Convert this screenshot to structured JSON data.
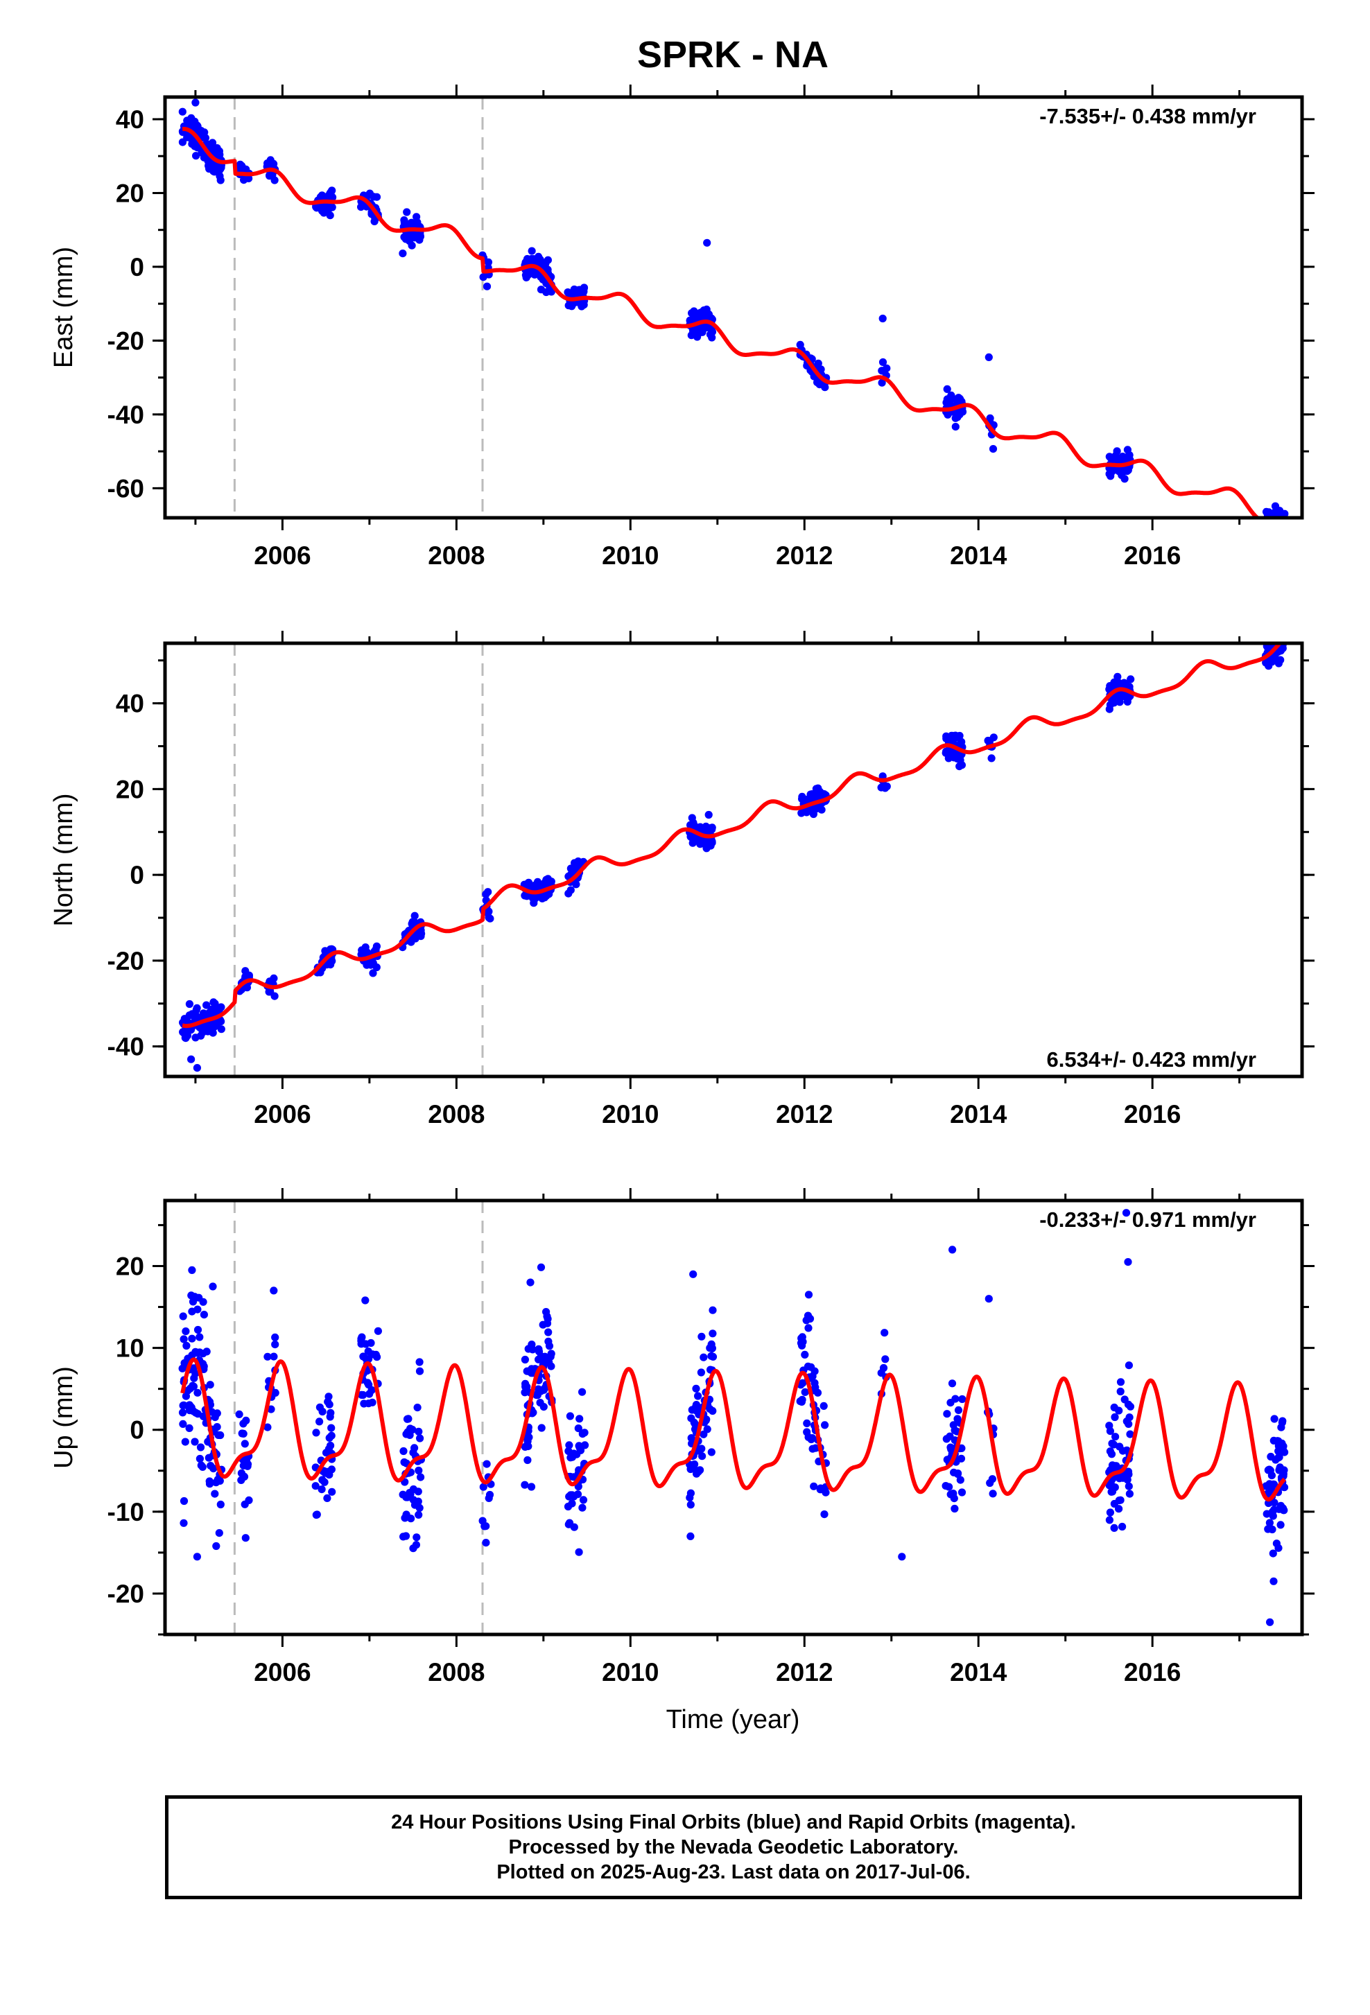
{
  "figure": {
    "title": "SPRK - NA",
    "xlabel": "Time (year)",
    "footer": [
      "24 Hour Positions Using Final Orbits (blue) and Rapid Orbits (magenta).",
      "Processed by the Nevada Geodetic Laboratory.",
      "Plotted on 2025-Aug-23. Last data on 2017-Jul-06."
    ],
    "colors": {
      "data": "#0000ff",
      "model": "#ff0000",
      "event_lines": "#bbbbbb",
      "axes": "#000000"
    }
  },
  "chart_data": [
    {
      "type": "scatter",
      "name": "east",
      "ylabel": "East (mm)",
      "rate_label": "-7.535+/- 0.438 mm/yr",
      "xlim": [
        2004.65,
        2017.72
      ],
      "ylim": [
        -68,
        46
      ],
      "xticks": [
        2006,
        2008,
        2010,
        2012,
        2014,
        2016
      ],
      "yticks": [
        40,
        20,
        0,
        -20,
        -40,
        -60
      ],
      "event_lines_x": [
        2005.45,
        2008.3
      ],
      "model": {
        "trend": -7.535,
        "offset": 34.5,
        "t0": 2004.85,
        "annual_amplitude": 2.6,
        "annual_phase_year": 2004.85,
        "semiannual_amplitude": 0.8,
        "semiannual_phase_year": 2004.95,
        "steps": [
          {
            "year": 2005.45,
            "value": -3.5
          },
          {
            "year": 2008.3,
            "value": -3.5
          }
        ]
      },
      "observation_clusters": [
        {
          "start": 2004.85,
          "end": 2005.3,
          "n": 110,
          "spread": 2.2
        },
        {
          "start": 2005.5,
          "end": 2005.62,
          "n": 18,
          "spread": 1.3
        },
        {
          "start": 2005.82,
          "end": 2005.92,
          "n": 12,
          "spread": 1.2
        },
        {
          "start": 2006.38,
          "end": 2006.58,
          "n": 35,
          "spread": 1.6
        },
        {
          "start": 2006.9,
          "end": 2007.1,
          "n": 32,
          "spread": 1.6
        },
        {
          "start": 2007.38,
          "end": 2007.6,
          "n": 48,
          "spread": 1.8
        },
        {
          "start": 2008.3,
          "end": 2008.4,
          "n": 10,
          "spread": 1.6
        },
        {
          "start": 2008.78,
          "end": 2009.1,
          "n": 75,
          "spread": 1.8
        },
        {
          "start": 2009.28,
          "end": 2009.48,
          "n": 40,
          "spread": 1.8
        },
        {
          "start": 2010.68,
          "end": 2010.95,
          "n": 70,
          "spread": 1.5
        },
        {
          "start": 2011.95,
          "end": 2012.25,
          "n": 55,
          "spread": 1.6
        },
        {
          "start": 2012.88,
          "end": 2012.95,
          "n": 6,
          "spread": 2.0
        },
        {
          "start": 2013.62,
          "end": 2013.82,
          "n": 45,
          "spread": 1.8
        },
        {
          "start": 2014.1,
          "end": 2014.18,
          "n": 8,
          "spread": 1.8
        },
        {
          "start": 2015.5,
          "end": 2015.75,
          "n": 60,
          "spread": 1.6
        },
        {
          "start": 2017.3,
          "end": 2017.52,
          "n": 70,
          "spread": 1.6
        }
      ],
      "outliers": [
        {
          "x": 2005.0,
          "y": 44.5
        },
        {
          "x": 2010.88,
          "y": 6.5
        },
        {
          "x": 2014.12,
          "y": -24.5
        },
        {
          "x": 2012.9,
          "y": -14
        }
      ]
    },
    {
      "type": "scatter",
      "name": "north",
      "ylabel": "North (mm)",
      "rate_label": "6.534+/- 0.423 mm/yr",
      "xlim": [
        2004.65,
        2017.72
      ],
      "ylim": [
        -47,
        54
      ],
      "xticks": [
        2006,
        2008,
        2010,
        2012,
        2014,
        2016
      ],
      "yticks": [
        40,
        20,
        0,
        -20,
        -40
      ],
      "event_lines_x": [
        2005.45,
        2008.3
      ],
      "model": {
        "trend": 6.534,
        "offset": -34.5,
        "t0": 2004.85,
        "annual_amplitude": 1.8,
        "annual_phase_year": 2005.6,
        "semiannual_amplitude": 0.6,
        "semiannual_phase_year": 2005.1,
        "steps": [
          {
            "year": 2005.45,
            "value": 2.5
          },
          {
            "year": 2008.3,
            "value": 2.5
          }
        ]
      },
      "observation_clusters": [
        {
          "start": 2004.85,
          "end": 2005.3,
          "n": 110,
          "spread": 1.6
        },
        {
          "start": 2005.5,
          "end": 2005.62,
          "n": 18,
          "spread": 1.0
        },
        {
          "start": 2005.82,
          "end": 2005.92,
          "n": 12,
          "spread": 1.2
        },
        {
          "start": 2006.38,
          "end": 2006.58,
          "n": 35,
          "spread": 1.3
        },
        {
          "start": 2006.9,
          "end": 2007.1,
          "n": 32,
          "spread": 1.4
        },
        {
          "start": 2007.38,
          "end": 2007.6,
          "n": 48,
          "spread": 1.3
        },
        {
          "start": 2008.3,
          "end": 2008.4,
          "n": 10,
          "spread": 1.4
        },
        {
          "start": 2008.78,
          "end": 2009.1,
          "n": 75,
          "spread": 1.3
        },
        {
          "start": 2009.28,
          "end": 2009.48,
          "n": 40,
          "spread": 1.5
        },
        {
          "start": 2010.68,
          "end": 2010.95,
          "n": 70,
          "spread": 1.4
        },
        {
          "start": 2011.95,
          "end": 2012.25,
          "n": 55,
          "spread": 1.4
        },
        {
          "start": 2012.88,
          "end": 2012.95,
          "n": 6,
          "spread": 1.5
        },
        {
          "start": 2013.62,
          "end": 2013.82,
          "n": 45,
          "spread": 1.5
        },
        {
          "start": 2014.1,
          "end": 2014.18,
          "n": 8,
          "spread": 1.5
        },
        {
          "start": 2015.5,
          "end": 2015.75,
          "n": 60,
          "spread": 1.4
        },
        {
          "start": 2017.3,
          "end": 2017.52,
          "n": 70,
          "spread": 1.7
        }
      ],
      "outliers": [
        {
          "x": 2004.95,
          "y": -43
        },
        {
          "x": 2005.02,
          "y": -45
        },
        {
          "x": 2010.9,
          "y": 14
        },
        {
          "x": 2012.9,
          "y": 23
        }
      ]
    },
    {
      "type": "scatter",
      "name": "up",
      "ylabel": "Up (mm)",
      "rate_label": "-0.233+/- 0.971 mm/yr",
      "xlim": [
        2004.65,
        2017.72
      ],
      "ylim": [
        -25,
        28
      ],
      "xticks": [
        2006,
        2008,
        2010,
        2012,
        2014,
        2016
      ],
      "yticks": [
        20,
        10,
        0,
        -10,
        -20
      ],
      "event_lines_x": [
        2005.45,
        2008.3
      ],
      "model": {
        "trend": -0.233,
        "offset": 0.2,
        "t0": 2004.85,
        "annual_amplitude": 6.2,
        "annual_phase_year": 2004.95,
        "semiannual_amplitude": 2.4,
        "semiannual_phase_year": 2005.0,
        "steps": []
      },
      "observation_clusters": [
        {
          "start": 2004.85,
          "end": 2005.3,
          "n": 110,
          "spread": 5.0
        },
        {
          "start": 2005.5,
          "end": 2005.62,
          "n": 18,
          "spread": 3.5
        },
        {
          "start": 2005.82,
          "end": 2005.92,
          "n": 12,
          "spread": 2.5
        },
        {
          "start": 2006.38,
          "end": 2006.58,
          "n": 35,
          "spread": 4.0
        },
        {
          "start": 2006.9,
          "end": 2007.1,
          "n": 32,
          "spread": 4.0
        },
        {
          "start": 2007.38,
          "end": 2007.6,
          "n": 48,
          "spread": 4.5
        },
        {
          "start": 2008.3,
          "end": 2008.4,
          "n": 10,
          "spread": 4.0
        },
        {
          "start": 2008.78,
          "end": 2009.1,
          "n": 75,
          "spread": 4.5
        },
        {
          "start": 2009.28,
          "end": 2009.48,
          "n": 40,
          "spread": 4.5
        },
        {
          "start": 2010.68,
          "end": 2010.95,
          "n": 70,
          "spread": 4.0
        },
        {
          "start": 2011.95,
          "end": 2012.25,
          "n": 55,
          "spread": 4.5
        },
        {
          "start": 2012.88,
          "end": 2012.95,
          "n": 6,
          "spread": 4.0
        },
        {
          "start": 2013.62,
          "end": 2013.82,
          "n": 45,
          "spread": 4.5
        },
        {
          "start": 2014.1,
          "end": 2014.18,
          "n": 8,
          "spread": 4.0
        },
        {
          "start": 2015.5,
          "end": 2015.75,
          "n": 60,
          "spread": 4.5
        },
        {
          "start": 2017.3,
          "end": 2017.52,
          "n": 70,
          "spread": 3.5
        }
      ],
      "outliers": [
        {
          "x": 2004.96,
          "y": 19.5
        },
        {
          "x": 2005.02,
          "y": -15.5
        },
        {
          "x": 2005.2,
          "y": 17.5
        },
        {
          "x": 2005.9,
          "y": 17
        },
        {
          "x": 2008.85,
          "y": 18
        },
        {
          "x": 2010.72,
          "y": 19
        },
        {
          "x": 2012.05,
          "y": 16.5
        },
        {
          "x": 2013.12,
          "y": -15.5
        },
        {
          "x": 2013.7,
          "y": 22
        },
        {
          "x": 2014.12,
          "y": 16
        },
        {
          "x": 2015.7,
          "y": 26.5
        },
        {
          "x": 2015.72,
          "y": 20.5
        },
        {
          "x": 2017.35,
          "y": -23.5
        },
        {
          "x": 2017.48,
          "y": 0.3
        }
      ]
    }
  ]
}
